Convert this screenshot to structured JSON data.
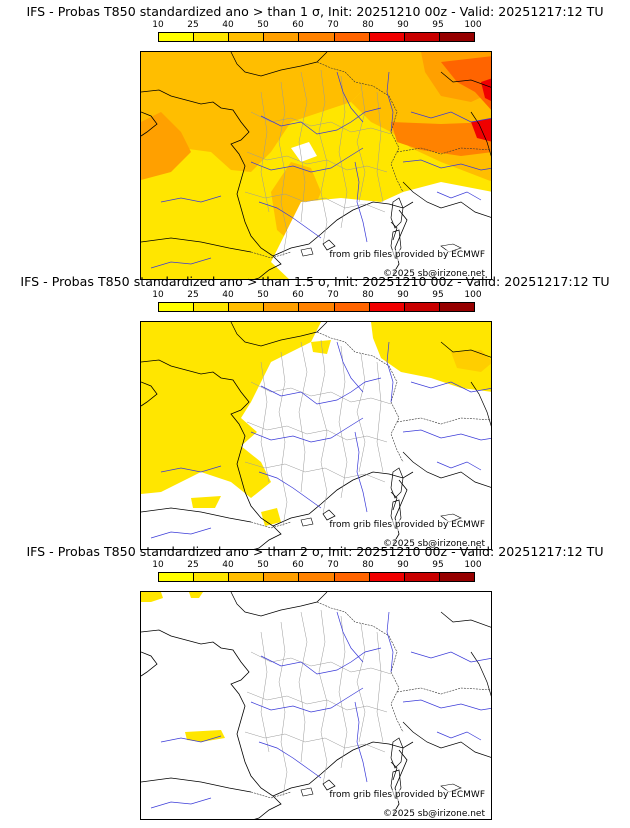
{
  "colorbar": {
    "ticks": [
      "10",
      "25",
      "40",
      "50",
      "60",
      "70",
      "80",
      "90",
      "95",
      "100"
    ],
    "colors": [
      "#ffff00",
      "#ffe600",
      "#ffbe00",
      "#ffa000",
      "#ff8200",
      "#ff6400",
      "#f00000",
      "#c80000",
      "#960000",
      "#640000"
    ]
  },
  "panels": [
    {
      "title": "IFS - Probas T850  standardized ano > than 1 σ, Init: 20251210 00z - Valid: 20251217:12 TU",
      "credit": "from grib files provided by ECMWF",
      "copyright": "©2025 sb@irizone.net"
    },
    {
      "title": "IFS - Probas T850  standardized ano > than 1.5 σ, Init: 20251210 00z - Valid: 20251217:12 TU",
      "credit": "from grib files provided by ECMWF",
      "copyright": "©2025 sb@irizone.net"
    },
    {
      "title": "IFS - Probas T850  standardized ano > than 2 σ, Init: 20251210 00z - Valid: 20251217:12 TU",
      "credit": "from grib files provided by ECMWF",
      "copyright": "©2025 sb@irizone.net"
    }
  ]
}
